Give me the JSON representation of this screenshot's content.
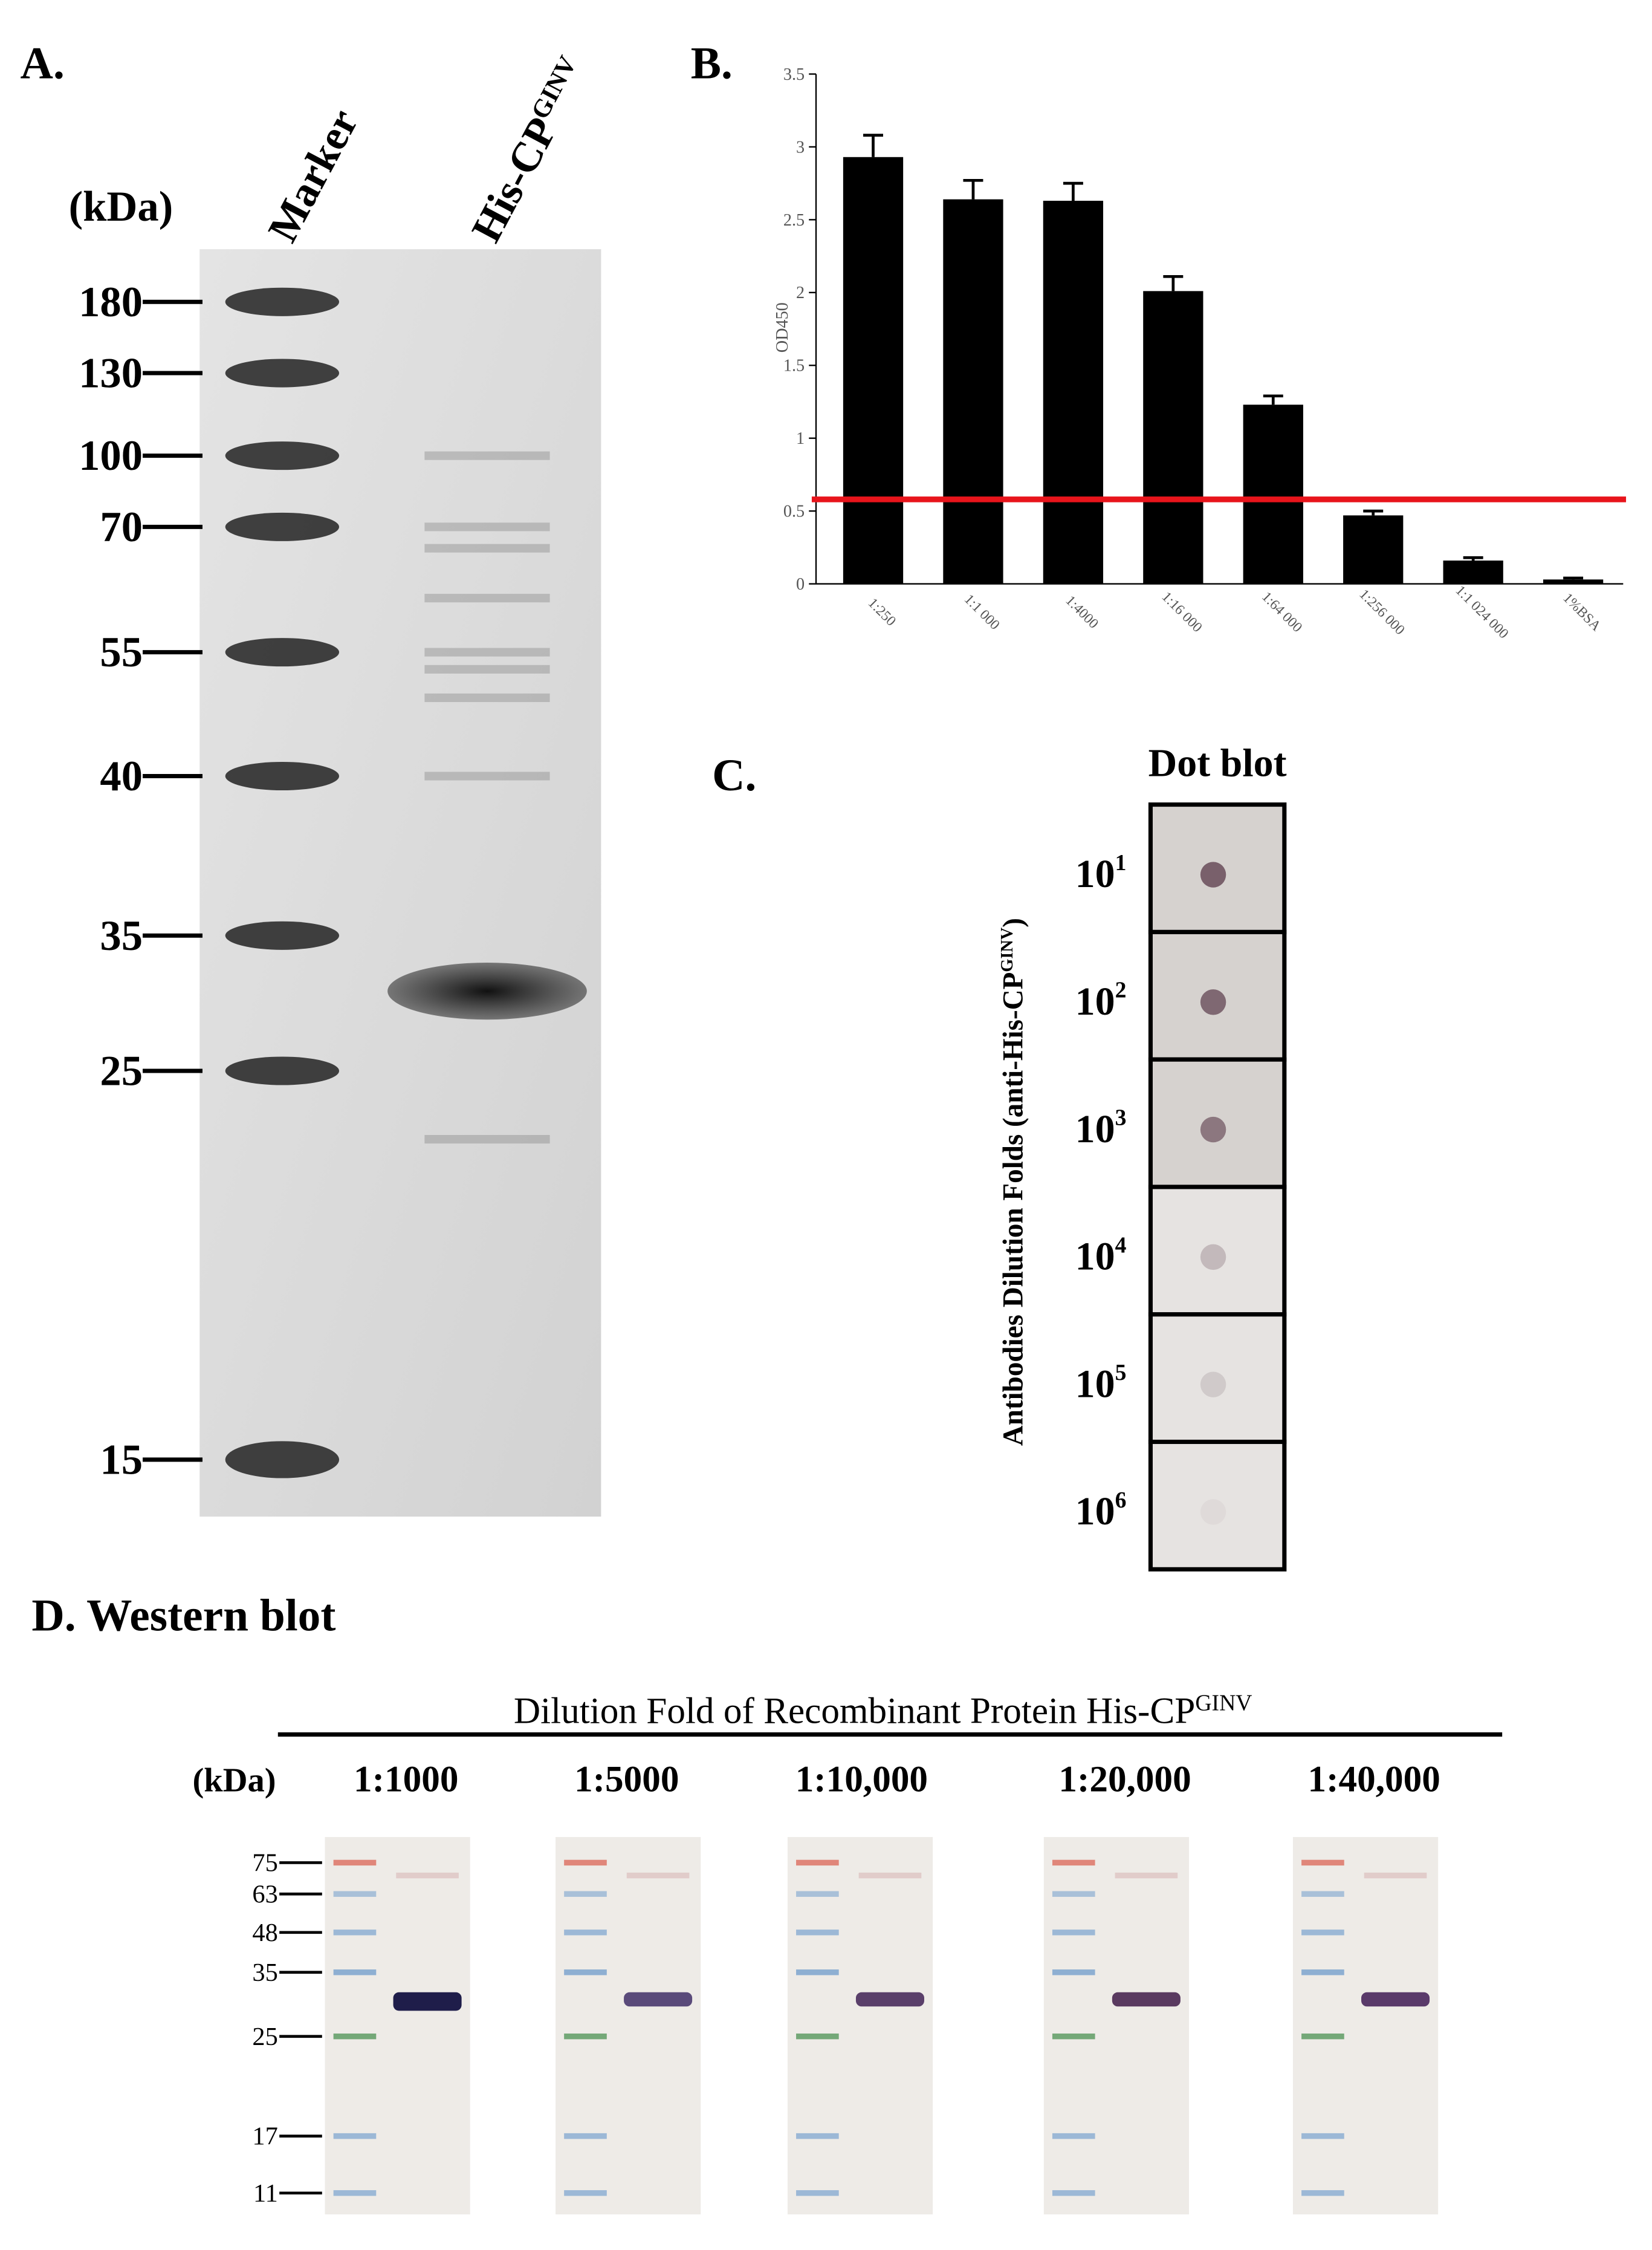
{
  "panel_a": {
    "label": "A.",
    "unit": "(kDa)",
    "lanes": [
      "Marker",
      "His-CP"
    ],
    "lane_superscript": "GINV",
    "markers": [
      180,
      130,
      100,
      70,
      55,
      40,
      35,
      25,
      15
    ]
  },
  "chart_data": {
    "type": "bar",
    "label": "B.",
    "ylabel": "OD450",
    "categories": [
      "1:250",
      "1:1 000",
      "1:4000",
      "1:16 000",
      "1:64 000",
      "1:256 000",
      "1:1 024 000",
      "1%BSA"
    ],
    "values": [
      2.93,
      2.64,
      2.63,
      2.01,
      1.23,
      0.47,
      0.16,
      0.03
    ],
    "errors": [
      0.15,
      0.13,
      0.12,
      0.1,
      0.06,
      0.03,
      0.02,
      0.01
    ],
    "color": "#000000",
    "cutoff": {
      "value": 0.58,
      "color": "#e8141b"
    },
    "ylim": [
      0,
      3.5
    ],
    "yticks": [
      0,
      0.5,
      1,
      1.5,
      2,
      2.5,
      3,
      3.5
    ]
  },
  "panel_c": {
    "label": "C.",
    "title": "Dot blot",
    "ylabel": "Antibodies Dilution Folds (anti-His-CP",
    "ylabel_superscript": "GINV",
    "ylabel_end": ")",
    "rows": [
      {
        "base": "10",
        "exp": "1"
      },
      {
        "base": "10",
        "exp": "2"
      },
      {
        "base": "10",
        "exp": "3"
      },
      {
        "base": "10",
        "exp": "4"
      },
      {
        "base": "10",
        "exp": "5"
      },
      {
        "base": "10",
        "exp": "6"
      }
    ]
  },
  "panel_d": {
    "label": "D. Western blot",
    "header": "Dilution Fold of Recombinant Protein His-CP",
    "header_superscript": "GINV",
    "unit": "(kDa)",
    "dilutions": [
      "1:1000",
      "1:5000",
      "1:10,000",
      "1:20,000",
      "1:40,000"
    ],
    "markers": [
      75,
      63,
      48,
      35,
      25,
      17,
      11
    ]
  }
}
